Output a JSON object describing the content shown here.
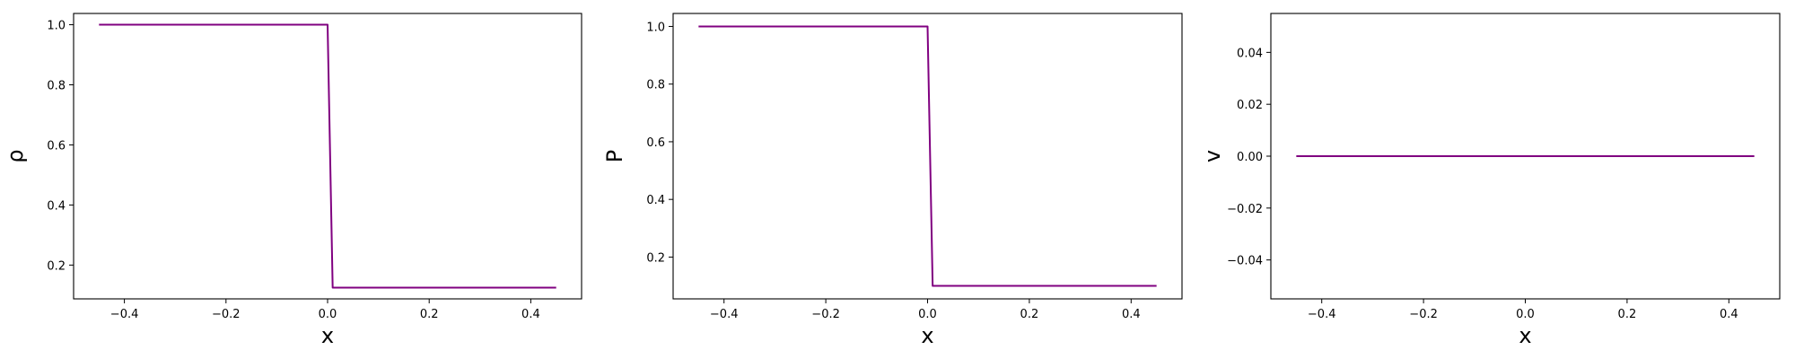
{
  "chart_data": [
    {
      "type": "line",
      "xlabel": "x",
      "ylabel": "ρ",
      "xlim": [
        -0.5,
        0.5
      ],
      "ylim": [
        0.0875,
        1.0375
      ],
      "xticks": [
        -0.4,
        -0.2,
        0.0,
        0.2,
        0.4
      ],
      "xtick_labels": [
        "−0.4",
        "−0.2",
        "0.0",
        "0.2",
        "0.4"
      ],
      "yticks": [
        0.2,
        0.4,
        0.6,
        0.8,
        1.0
      ],
      "ytick_labels": [
        "0.2",
        "0.4",
        "0.6",
        "0.8",
        "1.0"
      ],
      "grid": false,
      "series": [
        {
          "color": "#800080",
          "x": [
            -0.45,
            0.0,
            0.01,
            0.45
          ],
          "y": [
            1.0,
            1.0,
            0.125,
            0.125
          ]
        }
      ]
    },
    {
      "type": "line",
      "xlabel": "x",
      "ylabel": "P",
      "xlim": [
        -0.5,
        0.5
      ],
      "ylim": [
        0.055,
        1.045
      ],
      "xticks": [
        -0.4,
        -0.2,
        0.0,
        0.2,
        0.4
      ],
      "xtick_labels": [
        "−0.4",
        "−0.2",
        "0.0",
        "0.2",
        "0.4"
      ],
      "yticks": [
        0.2,
        0.4,
        0.6,
        0.8,
        1.0
      ],
      "ytick_labels": [
        "0.2",
        "0.4",
        "0.6",
        "0.8",
        "1.0"
      ],
      "grid": false,
      "series": [
        {
          "color": "#800080",
          "x": [
            -0.45,
            0.0,
            0.01,
            0.45
          ],
          "y": [
            1.0,
            1.0,
            0.1,
            0.1
          ]
        }
      ]
    },
    {
      "type": "line",
      "xlabel": "x",
      "ylabel": "v",
      "xlim": [
        -0.5,
        0.5
      ],
      "ylim": [
        -0.055,
        0.055
      ],
      "xticks": [
        -0.4,
        -0.2,
        0.0,
        0.2,
        0.4
      ],
      "xtick_labels": [
        "−0.4",
        "−0.2",
        "0.0",
        "0.2",
        "0.4"
      ],
      "yticks": [
        -0.04,
        -0.02,
        0.0,
        0.02,
        0.04
      ],
      "ytick_labels": [
        "−0.04",
        "−0.02",
        "0.00",
        "0.02",
        "0.04"
      ],
      "grid": false,
      "series": [
        {
          "color": "#800080",
          "x": [
            -0.45,
            0.45
          ],
          "y": [
            0.0,
            0.0
          ]
        }
      ]
    }
  ]
}
